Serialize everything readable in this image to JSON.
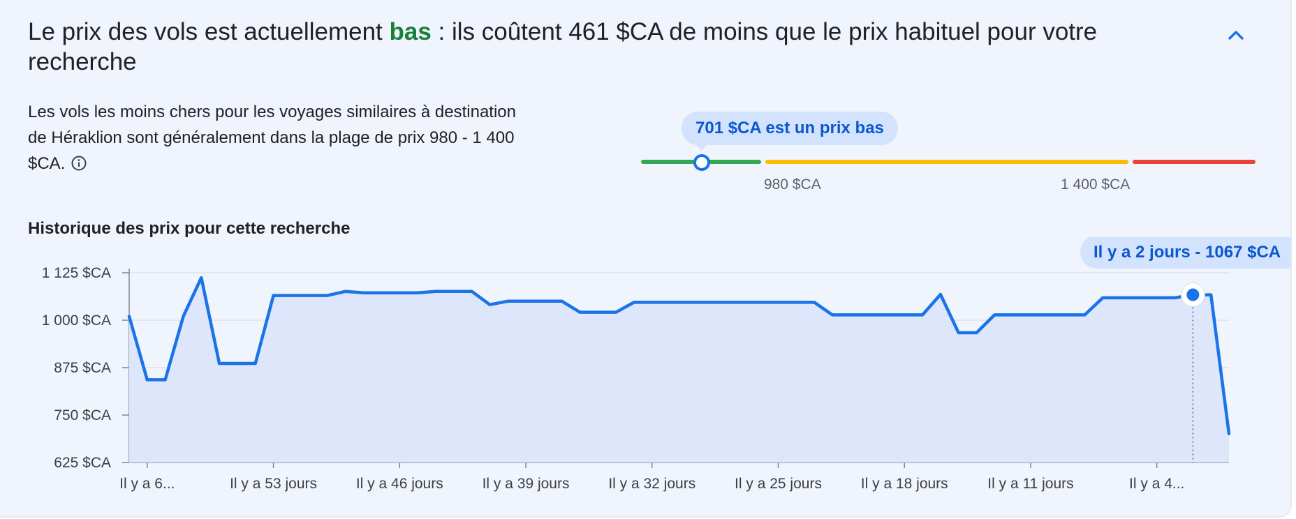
{
  "headline": {
    "before": "Le prix des vols est actuellement ",
    "level": "bas",
    "after": " : ils coûtent 461 $CA de moins que le prix habituel pour votre recherche"
  },
  "icons": {
    "collapse": "chevron-up-icon",
    "info": "info-icon"
  },
  "description": "Les vols les moins chers pour les voyages similaires à destination de Héraklion sont généralement dans la plage de prix 980 - 1 400 $CA.",
  "price_range": {
    "bubble": "701 $CA est un prix bas",
    "current_price": 701,
    "low_label": "980 $CA",
    "high_label": "1 400 $CA",
    "scale_min": 500,
    "low_threshold": 980,
    "high_threshold": 1400,
    "scale_max": 1650,
    "colors": {
      "low": "#34a853",
      "typical": "#fbbc04",
      "high": "#ea4335",
      "marker": "#1a73e8"
    }
  },
  "history_title": "Historique des prix pour cette recherche",
  "chart_data": {
    "type": "line",
    "title": "Historique des prix pour cette recherche",
    "xlabel": "",
    "ylabel": "",
    "ylim": [
      625,
      1125
    ],
    "yticks": [
      625,
      750,
      875,
      1000,
      1125
    ],
    "ytick_labels": [
      "625 $CA",
      "750 $CA",
      "875 $CA",
      "1 000 $CA",
      "1 125 $CA"
    ],
    "xtick_labels": [
      "Il y a 6...",
      "Il y a 53 jours",
      "Il y a 46 jours",
      "Il y a 39 jours",
      "Il y a 32 jours",
      "Il y a 25 jours",
      "Il y a 18 jours",
      "Il y a 11 jours",
      "Il y a 4..."
    ],
    "xtick_days_ago": [
      60,
      53,
      46,
      39,
      32,
      25,
      18,
      11,
      4
    ],
    "grid": true,
    "color": "#1a73e8",
    "fill": "#dde6fa",
    "series": [
      {
        "days_ago": [
          61,
          60,
          59,
          58,
          57,
          56,
          55,
          54,
          53,
          52,
          51,
          50,
          49,
          48,
          47,
          46,
          45,
          44,
          43,
          42,
          41,
          40,
          39,
          38,
          37,
          36,
          35,
          34,
          33,
          32,
          31,
          30,
          29,
          28,
          27,
          26,
          25,
          24,
          23,
          22,
          21,
          20,
          19,
          18,
          17,
          16,
          15,
          14,
          13,
          12,
          11,
          10,
          9,
          8,
          7,
          6,
          5,
          4,
          3,
          2,
          1,
          0
        ],
        "values": [
          1010,
          843,
          843,
          1010,
          1112,
          886,
          886,
          886,
          1065,
          1065,
          1065,
          1065,
          1076,
          1072,
          1072,
          1072,
          1072,
          1076,
          1076,
          1076,
          1041,
          1050,
          1050,
          1050,
          1050,
          1021,
          1021,
          1021,
          1047,
          1047,
          1047,
          1047,
          1047,
          1047,
          1047,
          1047,
          1047,
          1047,
          1047,
          1014,
          1014,
          1014,
          1014,
          1014,
          1014,
          1068,
          967,
          967,
          1014,
          1014,
          1014,
          1014,
          1014,
          1014,
          1059,
          1059,
          1059,
          1059,
          1059,
          1067,
          1067,
          701
        ]
      }
    ],
    "highlight": {
      "days_ago": 2,
      "value": 1067,
      "label": "Il y a 2 jours - 1067 $CA"
    }
  }
}
